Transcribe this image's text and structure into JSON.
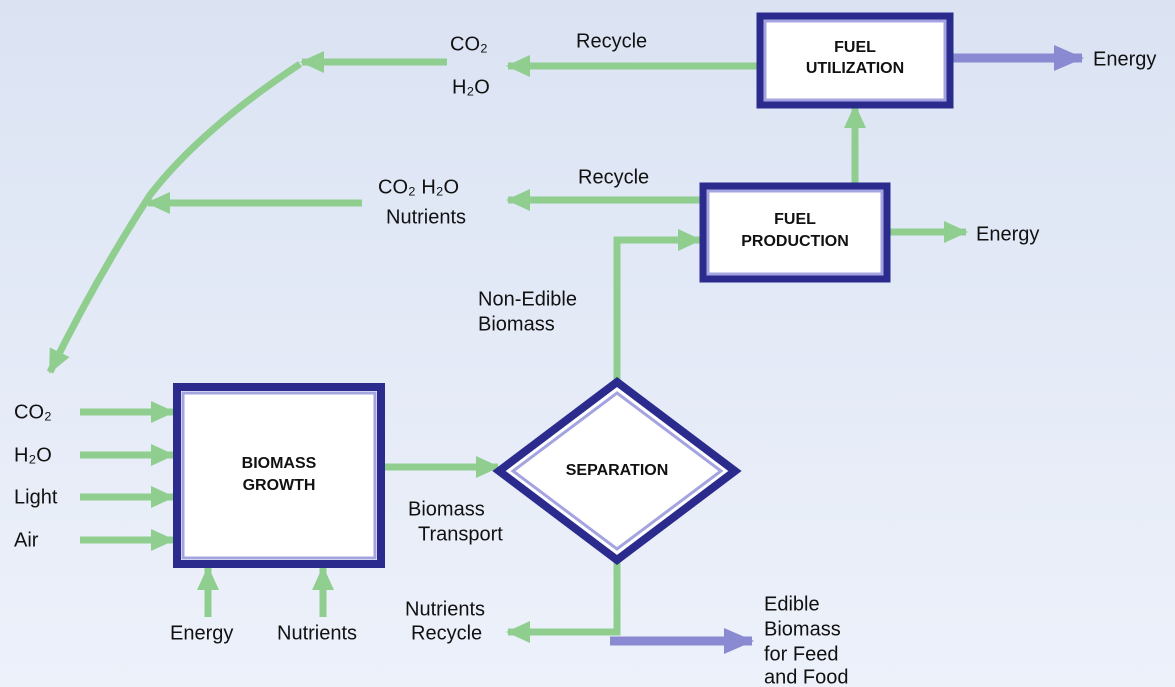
{
  "boxes": [
    {
      "lines": [
        "FUEL",
        "UTILIZATION"
      ]
    },
    {
      "lines": [
        "FUEL",
        "PRODUCTION"
      ]
    },
    {
      "lines": [
        "BIOMASS",
        "GROWTH"
      ]
    },
    {
      "lines": [
        "SEPARATION"
      ]
    }
  ],
  "labels": [
    {
      "lines": [
        "CO₂",
        "H₂O"
      ]
    },
    {
      "lines": [
        "Recycle"
      ]
    },
    {
      "lines": [
        "Energy"
      ]
    },
    {
      "lines": [
        "Recycle"
      ]
    },
    {
      "lines": [
        "CO₂  H₂O",
        "Nutrients"
      ]
    },
    {
      "lines": [
        "Energy"
      ]
    },
    {
      "lines": [
        "Non-Edible",
        "Biomass"
      ]
    },
    {
      "lines": [
        "CO₂",
        "H₂O",
        "Light",
        "Air"
      ]
    },
    {
      "lines": [
        "Energy"
      ]
    },
    {
      "lines": [
        "Nutrients"
      ]
    },
    {
      "lines": [
        "Biomass",
        "Transport"
      ]
    },
    {
      "lines": [
        "Nutrients",
        "Recycle"
      ]
    },
    {
      "lines": [
        "Edible",
        "Biomass",
        "for Feed",
        "and Food"
      ]
    }
  ]
}
